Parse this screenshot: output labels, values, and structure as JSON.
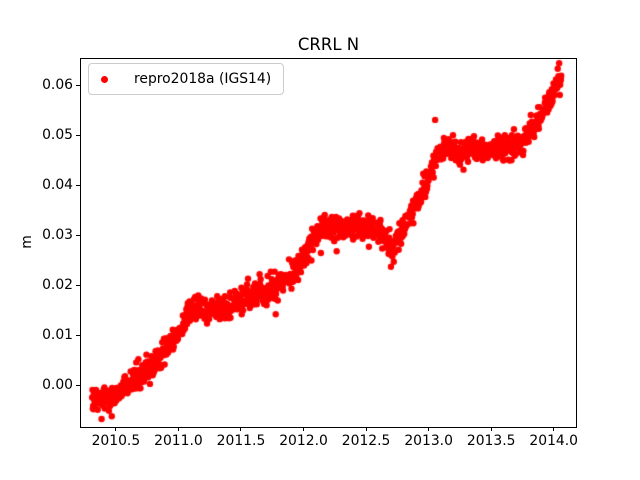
{
  "chart": {
    "title": "CRRL N",
    "ylabel": "m",
    "legend": {
      "label": "repro2018a (IGS14)",
      "marker_color": "#ff0000"
    },
    "x_tick_labels": [
      "2010.5",
      "2011.0",
      "2011.5",
      "2012.0",
      "2012.5",
      "2013.0",
      "2013.5",
      "2014.0"
    ],
    "y_tick_labels": [
      "0.00",
      "0.01",
      "0.02",
      "0.03",
      "0.04",
      "0.05",
      "0.06"
    ],
    "colors": {
      "marker": "#ff0000",
      "spine": "#000000",
      "legend_edge": "#cccccc",
      "background": "#ffffff"
    }
  },
  "chart_data": {
    "type": "scatter",
    "title": "CRRL N",
    "xlabel": "",
    "ylabel": "m",
    "xlim": [
      2010.213,
      2014.186
    ],
    "ylim": [
      -0.0084,
      0.0654
    ],
    "x_ticks": [
      2010.5,
      2011.0,
      2011.5,
      2012.0,
      2012.5,
      2013.0,
      2013.5,
      2014.0
    ],
    "y_ticks": [
      0.0,
      0.01,
      0.02,
      0.03,
      0.04,
      0.05,
      0.06
    ],
    "grid": false,
    "legend_position": "upper left",
    "series": [
      {
        "name": "repro2018a (IGS14)",
        "color": "#ff0000",
        "marker": "dot",
        "marker_radius_px": 3.2,
        "n_points": 1340,
        "x_start": 2010.31,
        "x_end": 2014.06,
        "noise_sigma": 0.0012,
        "outlier_fraction": 0.012,
        "outlier_sigma": 0.0028,
        "trend_points": [
          [
            2010.31,
            -0.003
          ],
          [
            2010.42,
            -0.0028
          ],
          [
            2010.52,
            -0.0015
          ],
          [
            2010.6,
            0.0005
          ],
          [
            2010.7,
            0.0022
          ],
          [
            2010.8,
            0.0045
          ],
          [
            2010.9,
            0.007
          ],
          [
            2011.0,
            0.011
          ],
          [
            2011.08,
            0.0148
          ],
          [
            2011.15,
            0.0158
          ],
          [
            2011.25,
            0.0155
          ],
          [
            2011.35,
            0.0152
          ],
          [
            2011.45,
            0.0165
          ],
          [
            2011.55,
            0.0178
          ],
          [
            2011.62,
            0.0182
          ],
          [
            2011.7,
            0.019
          ],
          [
            2011.8,
            0.0205
          ],
          [
            2011.9,
            0.022
          ],
          [
            2012.0,
            0.0255
          ],
          [
            2012.08,
            0.029
          ],
          [
            2012.15,
            0.0313
          ],
          [
            2012.25,
            0.0318
          ],
          [
            2012.35,
            0.0315
          ],
          [
            2012.45,
            0.0322
          ],
          [
            2012.55,
            0.0312
          ],
          [
            2012.65,
            0.0295
          ],
          [
            2012.72,
            0.0275
          ],
          [
            2012.8,
            0.0315
          ],
          [
            2012.9,
            0.036
          ],
          [
            2013.0,
            0.0415
          ],
          [
            2013.08,
            0.047
          ],
          [
            2013.15,
            0.0485
          ],
          [
            2013.25,
            0.046
          ],
          [
            2013.35,
            0.0478
          ],
          [
            2013.45,
            0.0468
          ],
          [
            2013.55,
            0.0478
          ],
          [
            2013.65,
            0.0475
          ],
          [
            2013.75,
            0.049
          ],
          [
            2013.85,
            0.052
          ],
          [
            2013.95,
            0.056
          ],
          [
            2014.02,
            0.0595
          ],
          [
            2014.06,
            0.0612
          ]
        ]
      }
    ]
  }
}
